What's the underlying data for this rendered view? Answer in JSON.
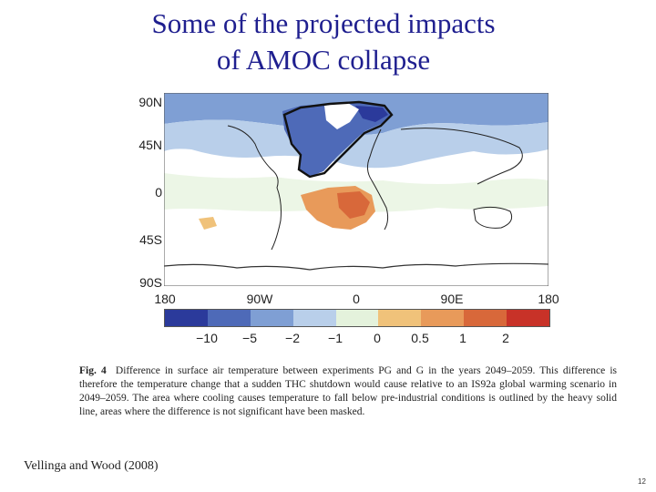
{
  "slide": {
    "title_line1": "Some of the projected impacts",
    "title_line2": "of AMOC collapse",
    "source": "Vellinga and Wood (2008)",
    "page_number": "12"
  },
  "map": {
    "lat_labels": [
      "90N",
      "45N",
      "0",
      "45S",
      "90S"
    ],
    "lon_labels": [
      "180",
      "90W",
      "0",
      "90E",
      "180"
    ],
    "colors": {
      "deep_cool": "#2b3a9b",
      "strong_cool": "#4e6ab8",
      "cool": "#7f9fd4",
      "mild_cool": "#b9cfea",
      "slight": "#e4f2dc",
      "land_white": "#ffffff",
      "warm1": "#f0c27a",
      "warm2": "#e89a5a",
      "warm3": "#d8683a",
      "hot": "#c83228"
    }
  },
  "colorbar": {
    "tick_labels": [
      "−10",
      "−5",
      "−2",
      "−1",
      "0",
      "0.5",
      "1",
      "2"
    ],
    "colors": [
      "#2b3a9b",
      "#4e6ab8",
      "#7f9fd4",
      "#b9cfea",
      "#e4f2dc",
      "#f0c27a",
      "#e89a5a",
      "#d8683a",
      "#c83228"
    ]
  },
  "caption": {
    "label": "Fig. 4",
    "text": "Difference in surface air temperature between experiments PG and G in the years 2049–2059. This difference is therefore the temperature change that a sudden THC shutdown would cause relative to an IS92a global warming scenario in 2049–2059. The area where cooling causes temperature to fall below pre-industrial conditions is outlined by the heavy solid line, areas where the difference is not significant have been masked."
  }
}
